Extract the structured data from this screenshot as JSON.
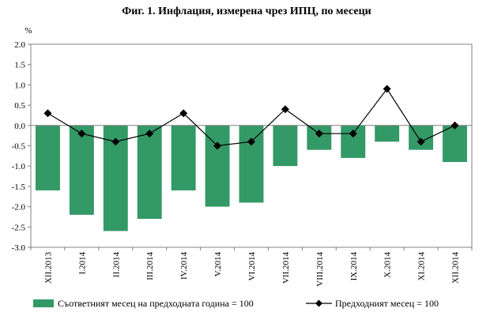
{
  "chart_data": {
    "type": "bar",
    "title": "Фиг. 1. Инфлация, измерена чрез ИПЦ, по месеци",
    "ylabel": "%",
    "xlabel": "",
    "ylim": [
      -3.0,
      2.0
    ],
    "ytick_step": 0.5,
    "ytick_labels": [
      "2.0",
      "1.5",
      "1.0",
      "0.5",
      "0.0",
      "-0.5",
      "-1.0",
      "-1.5",
      "-2.0",
      "-2.5",
      "-3.0"
    ],
    "grid": false,
    "legend_position": "bottom",
    "categories": [
      "XII.2013",
      "I.2014",
      "II.2014",
      "III.2014",
      "IV.2014",
      "V.2014",
      "VI.2014",
      "VII.2014",
      "VIII.2014",
      "IX.2014",
      "X.2014",
      "XI.2014",
      "XII.2014"
    ],
    "series": [
      {
        "name": "Съответният месец на предходната година = 100",
        "type": "bar",
        "color": "#339966",
        "values": [
          -1.6,
          -2.2,
          -2.6,
          -2.3,
          -1.6,
          -2.0,
          -1.9,
          -1.0,
          -0.6,
          -0.8,
          -0.4,
          -0.6,
          -0.9
        ]
      },
      {
        "name": "Предходният месец = 100",
        "type": "line",
        "color": "#000000",
        "marker": "diamond",
        "values": [
          0.3,
          -0.2,
          -0.4,
          -0.2,
          0.3,
          -0.5,
          -0.4,
          0.4,
          -0.2,
          -0.2,
          0.9,
          -0.4,
          0.0
        ]
      }
    ]
  }
}
